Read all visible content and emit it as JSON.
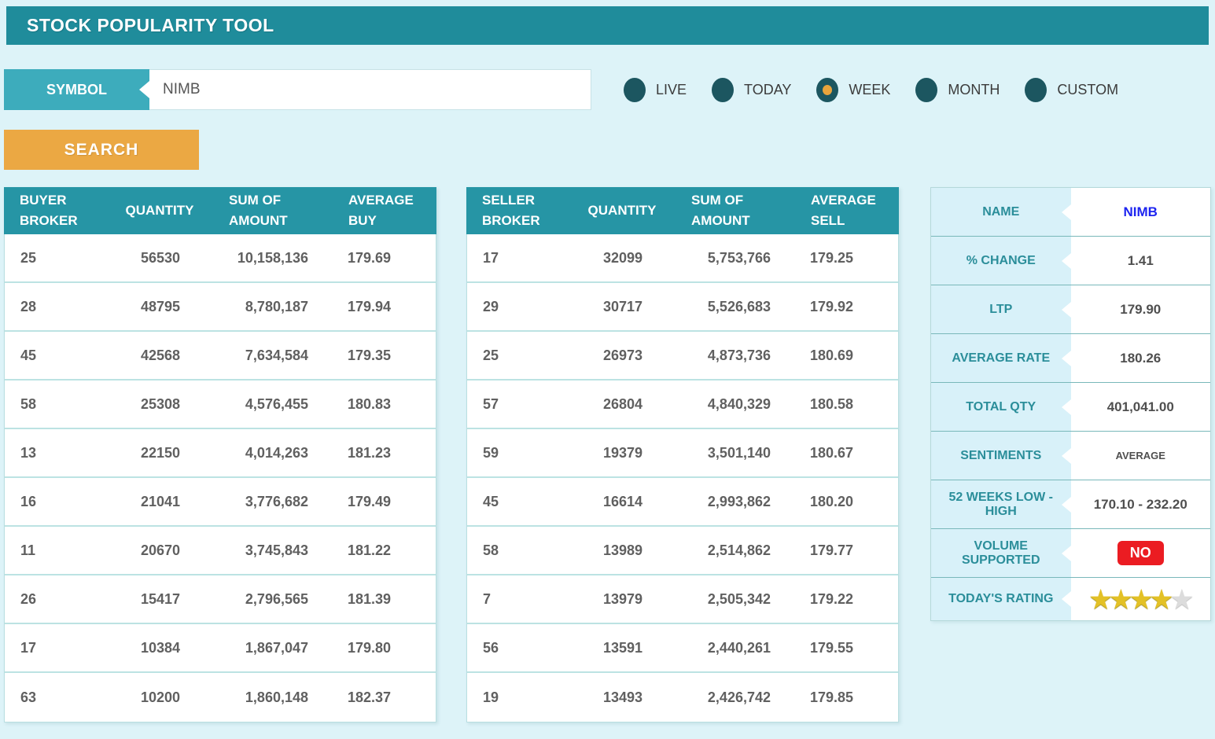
{
  "header": {
    "title": "STOCK POPULARITY TOOL"
  },
  "search_bar": {
    "symbol_label": "SYMBOL",
    "symbol_value": "NIMB",
    "search_button": "SEARCH"
  },
  "periods": [
    {
      "label": "LIVE",
      "selected": false
    },
    {
      "label": "TODAY",
      "selected": false
    },
    {
      "label": "WEEK",
      "selected": true
    },
    {
      "label": "MONTH",
      "selected": false
    },
    {
      "label": "CUSTOM",
      "selected": false
    }
  ],
  "buyer_table": {
    "headers": [
      "BUYER BROKER",
      "QUANTITY",
      "SUM OF AMOUNT",
      "AVERAGE BUY"
    ],
    "rows": [
      [
        "25",
        "56530",
        "10,158,136",
        "179.69"
      ],
      [
        "28",
        "48795",
        "8,780,187",
        "179.94"
      ],
      [
        "45",
        "42568",
        "7,634,584",
        "179.35"
      ],
      [
        "58",
        "25308",
        "4,576,455",
        "180.83"
      ],
      [
        "13",
        "22150",
        "4,014,263",
        "181.23"
      ],
      [
        "16",
        "21041",
        "3,776,682",
        "179.49"
      ],
      [
        "11",
        "20670",
        "3,745,843",
        "181.22"
      ],
      [
        "26",
        "15417",
        "2,796,565",
        "181.39"
      ],
      [
        "17",
        "10384",
        "1,867,047",
        "179.80"
      ],
      [
        "63",
        "10200",
        "1,860,148",
        "182.37"
      ]
    ]
  },
  "seller_table": {
    "headers": [
      "SELLER BROKER",
      "QUANTITY",
      "SUM OF AMOUNT",
      "AVERAGE SELL"
    ],
    "rows": [
      [
        "17",
        "32099",
        "5,753,766",
        "179.25"
      ],
      [
        "29",
        "30717",
        "5,526,683",
        "179.92"
      ],
      [
        "25",
        "26973",
        "4,873,736",
        "180.69"
      ],
      [
        "57",
        "26804",
        "4,840,329",
        "180.58"
      ],
      [
        "59",
        "19379",
        "3,501,140",
        "180.67"
      ],
      [
        "45",
        "16614",
        "2,993,862",
        "180.20"
      ],
      [
        "58",
        "13989",
        "2,514,862",
        "179.77"
      ],
      [
        "7",
        "13979",
        "2,505,342",
        "179.22"
      ],
      [
        "56",
        "13591",
        "2,440,261",
        "179.55"
      ],
      [
        "19",
        "13493",
        "2,426,742",
        "179.85"
      ]
    ]
  },
  "summary": {
    "rows": [
      {
        "label": "NAME",
        "value": "NIMB"
      },
      {
        "label": "% CHANGE",
        "value": "1.41"
      },
      {
        "label": "LTP",
        "value": "179.90"
      },
      {
        "label": "AVERAGE RATE",
        "value": "180.26"
      },
      {
        "label": "TOTAL QTY",
        "value": "401,041.00"
      },
      {
        "label": "SENTIMENTS",
        "value": "AVERAGE"
      },
      {
        "label": "52 WEEKS LOW - HIGH",
        "value": "170.10 - 232.20"
      },
      {
        "label": "VOLUME SUPPORTED",
        "value": "NO"
      },
      {
        "label": "TODAY'S RATING",
        "value": "4 of 5 stars"
      }
    ],
    "rating": {
      "filled": 4,
      "total": 5
    }
  },
  "colors": {
    "page_bg": "#ddf3f8",
    "header_teal": "#1f8c9b",
    "table_header_teal": "#2695a5",
    "symbol_tab_teal": "#3dacbc",
    "accent_orange": "#eba843",
    "radio_teal": "#1c5660",
    "selected_dot_orange": "#e9a43c",
    "summary_label_bg": "#d8f1f9",
    "summary_label_text": "#2b8e9a",
    "name_blue": "#1d24f0",
    "badge_red": "#eb1c22",
    "star_gold": "#e3c126"
  }
}
